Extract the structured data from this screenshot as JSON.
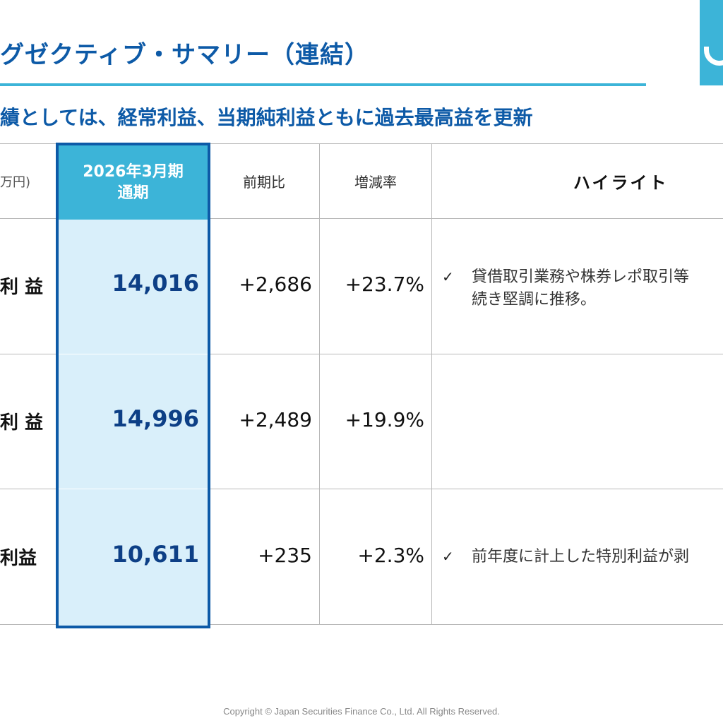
{
  "header": {
    "title": "グゼクティブ・サマリー（連結）",
    "subtitle": "績としては、経常利益、当期純利益ともに過去最高益を更新"
  },
  "table": {
    "unit_label": "万円)",
    "columns": {
      "current": [
        "2026年3月期",
        "通期"
      ],
      "diff": "前期比",
      "rate": "増減率",
      "highlight": "ハイライト"
    },
    "rows": [
      {
        "label": "利 益",
        "current": "14,016",
        "diff": "+2,686",
        "rate": "+23.7%",
        "highlight": [
          "貸借取引業務や株券レポ取引等",
          "続き堅調に推移。"
        ]
      },
      {
        "label": "利 益",
        "current": "14,996",
        "diff": "+2,489",
        "rate": "+19.9%",
        "highlight": []
      },
      {
        "label": "利益",
        "current": "10,611",
        "diff": "+235",
        "rate": "+2.3%",
        "highlight": [
          "前年度に計上した特別利益が剥"
        ]
      }
    ]
  },
  "checkmark": "✓",
  "footer": "Copyright © Japan Securities Finance Co., Ltd. All Rights Reserved.",
  "colors": {
    "brand_blue": "#0d5aa7",
    "accent_cyan": "#3cb4d8",
    "highlight_bg": "#d9effa"
  }
}
